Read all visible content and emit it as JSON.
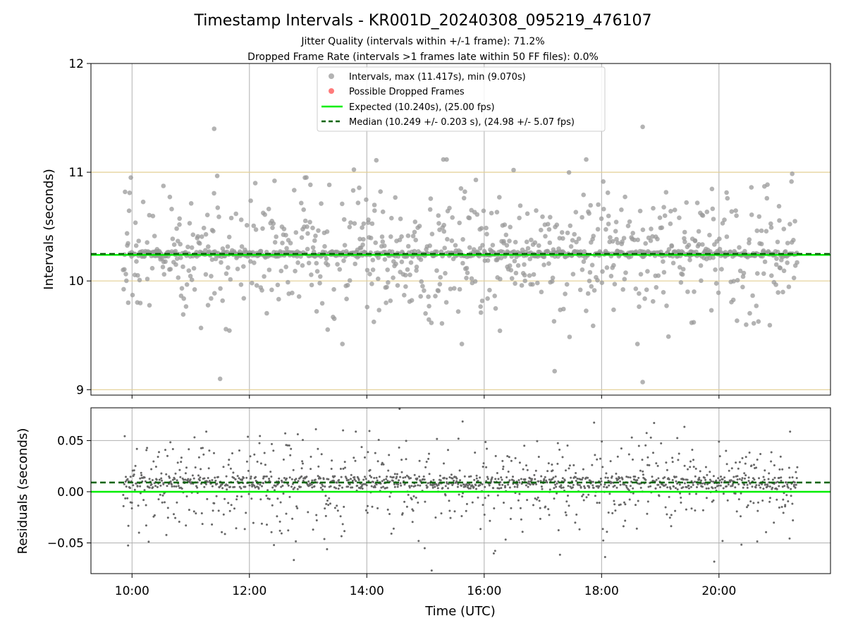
{
  "figure": {
    "title": "Timestamp Intervals - KR001D_20240308_095219_476107",
    "subtitle_1": "Jitter Quality (intervals within +/-1 frame): 71.2%",
    "subtitle_2": "Dropped Frame Rate (intervals >1 frames late within 50 FF files): 0.0%"
  },
  "chart_data": [
    {
      "type": "scatter",
      "ylabel": "Intervals (seconds)",
      "xlabel": "",
      "ylim": [
        8.95,
        12.0
      ],
      "yticks": [
        9,
        10,
        11,
        12
      ],
      "ytick_labels": [
        "9",
        "10",
        "11",
        "12"
      ],
      "xlim_hours": [
        9.3,
        21.9
      ],
      "xticks_hours": [
        10,
        12,
        14,
        16,
        18,
        20
      ],
      "xtick_labels": [
        "10:00",
        "12:00",
        "14:00",
        "16:00",
        "18:00",
        "20:00"
      ],
      "x_range_hours": [
        9.85,
        21.33
      ],
      "grid": "on",
      "legend_position": "top-center",
      "stats": {
        "interval_max_s": 11.417,
        "interval_min_s": 9.07,
        "expected_s": 10.24,
        "expected_fps": 25.0,
        "median_s": 10.249,
        "median_err_s": 0.203,
        "median_fps": 24.98,
        "median_fps_err": 5.07
      },
      "reference_lines": [
        {
          "name": "Expected (10.240s), (25.00 fps)",
          "y": 10.24,
          "style": "solid",
          "color": "#00ee00"
        },
        {
          "name": "Median (10.249 +/- 0.203 s), (24.98 +/- 5.07 fps)",
          "y": 10.249,
          "style": "dashed",
          "color": "#006400"
        }
      ],
      "horizontal_bands": [
        9,
        10,
        11
      ],
      "series": [
        {
          "name": "Intervals, max (11.417s), min (9.070s)",
          "color": "#999999",
          "marker": "circle",
          "count": 1600,
          "notable_points": [
            [
              11.4,
              11.4
            ],
            [
              18.7,
              11.417
            ],
            [
              18.7,
              9.07
            ],
            [
              11.5,
              9.1
            ],
            [
              17.2,
              9.17
            ]
          ]
        },
        {
          "name": "Possible Dropped Frames",
          "color": "#ff5a5a",
          "marker": "circle",
          "count": 0
        }
      ],
      "legend": [
        "Intervals, max (11.417s), min (9.070s)",
        "Possible Dropped Frames",
        "Expected (10.240s), (25.00 fps)",
        "Median (10.249 +/- 0.203 s), (24.98 +/- 5.07 fps)"
      ]
    },
    {
      "type": "scatter",
      "ylabel": "Residuals (seconds)",
      "xlabel": "Time (UTC)",
      "ylim": [
        -0.08,
        0.082
      ],
      "yticks": [
        -0.05,
        0.0,
        0.05
      ],
      "ytick_labels": [
        "−0.05",
        "0.00",
        "0.05"
      ],
      "xlim_hours": [
        9.3,
        21.9
      ],
      "xticks_hours": [
        10,
        12,
        14,
        16,
        18,
        20
      ],
      "xtick_labels": [
        "10:00",
        "12:00",
        "14:00",
        "16:00",
        "18:00",
        "20:00"
      ],
      "grid": "on",
      "reference_lines": [
        {
          "y": 0.0,
          "style": "solid",
          "color": "#00ee00"
        },
        {
          "y": 0.009,
          "style": "dashed",
          "color": "#006400"
        }
      ],
      "series": [
        {
          "color": "#666666",
          "marker": "dot",
          "count": 1600
        }
      ]
    }
  ]
}
